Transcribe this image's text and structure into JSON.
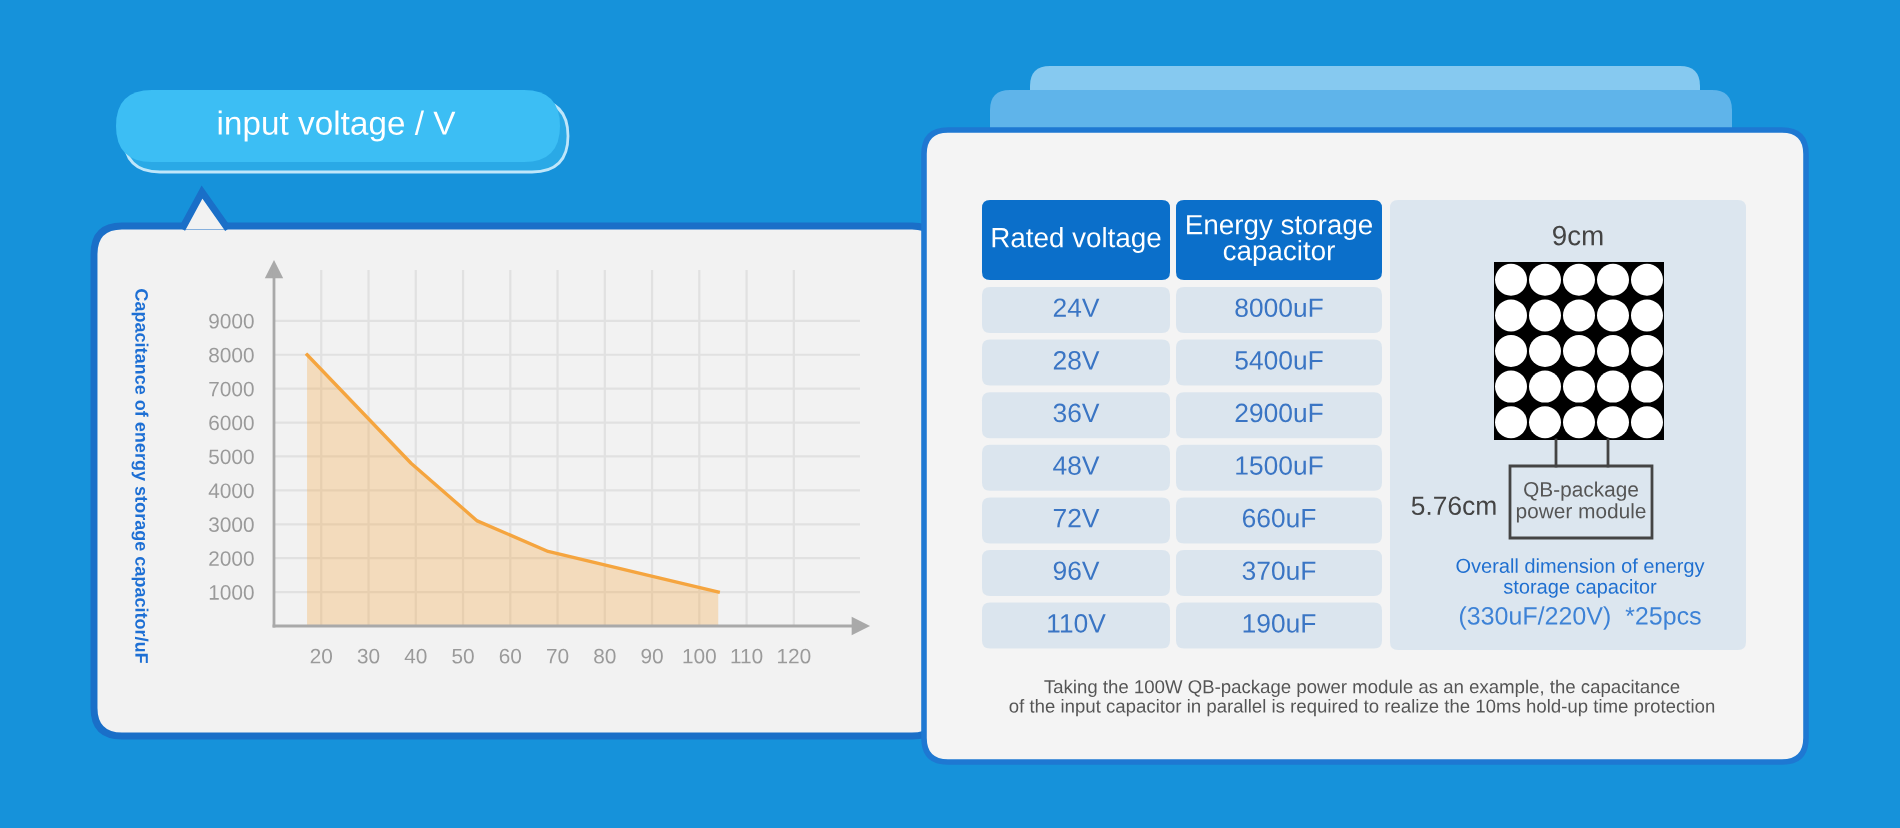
{
  "chart_data": [
    {
      "type": "area",
      "xlabel": "input voltage / V",
      "ylabel": "Capacitance of energy storage capacitor/uF",
      "x": [
        17,
        39,
        53,
        68,
        89,
        104
      ],
      "values": [
        8000,
        4800,
        3100,
        2200,
        1500,
        1000
      ],
      "color": "#f5a53f",
      "xlim": [
        10,
        134
      ],
      "ylim": [
        0,
        10500
      ],
      "xticks": [
        20,
        30,
        40,
        50,
        60,
        70,
        80,
        90,
        100,
        110,
        120
      ],
      "yticks": [
        1000,
        2000,
        3000,
        4000,
        5000,
        6000,
        7000,
        8000,
        9000
      ],
      "grid": true
    },
    {
      "type": "other",
      "annotations": [
        "Rated voltage",
        "Energy storage\ncapacitor",
        "24V",
        "8000uF",
        "28V",
        "5400uF",
        "36V",
        "2900uF",
        "48V",
        "1500uF",
        "72V",
        "660uF",
        "96V",
        "370uF",
        "110V",
        "190uF",
        "9cm",
        "5.76cm",
        "QB-package\npower module",
        "Overall dimension of energy\nstorage capacitor",
        "(330uF/220V)  *25pcs",
        "Taking the 100W QB-package power module as an example, the capacitance\nof the input capacitor in parallel is required to realize the 10ms hold-up time protection"
      ]
    }
  ]
}
